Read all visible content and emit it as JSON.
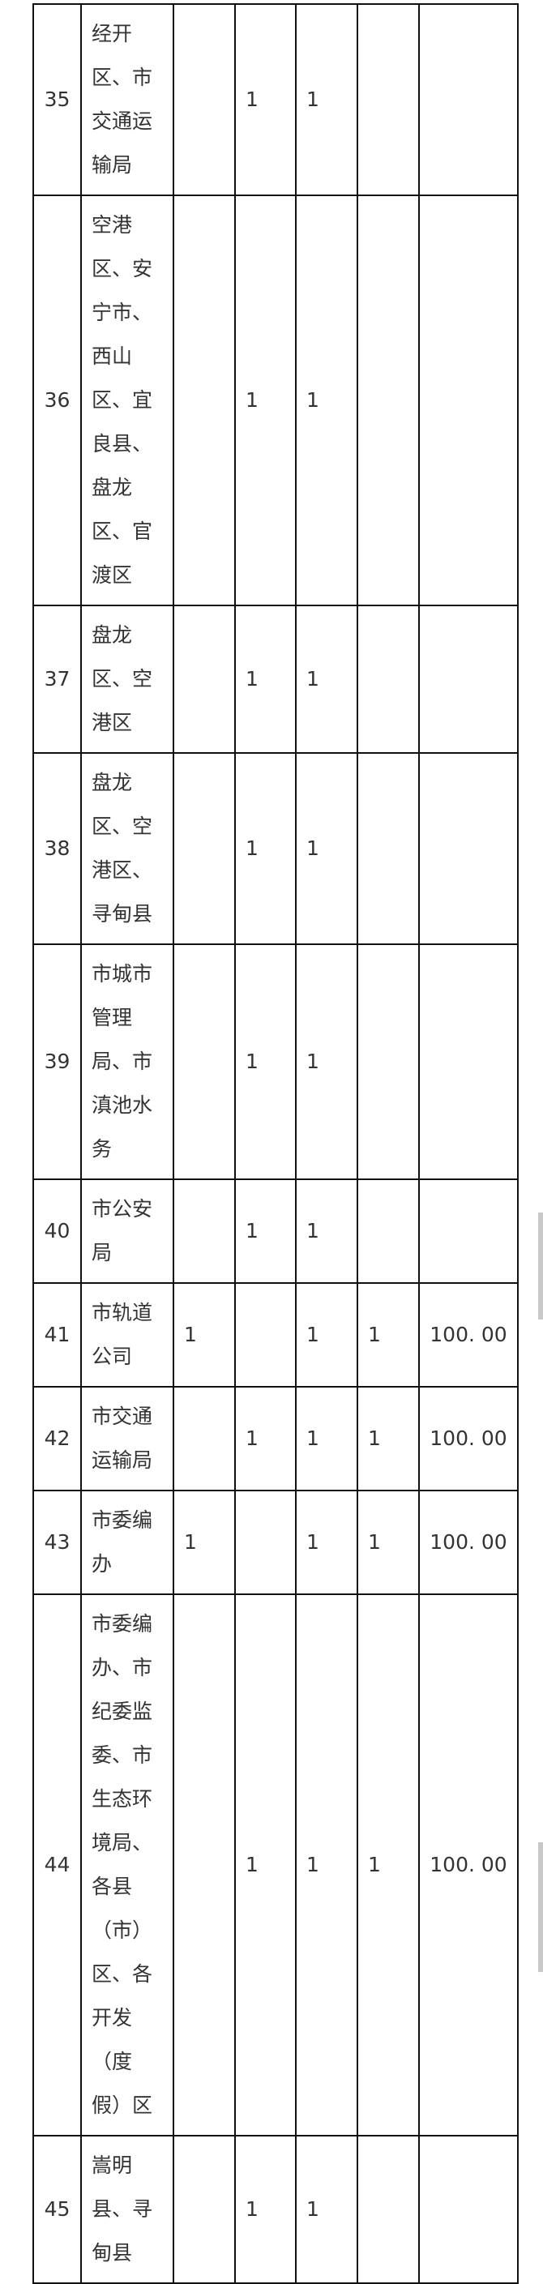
{
  "table": {
    "rows": [
      {
        "no": "35",
        "unit": [
          "经开",
          "区、市",
          "交通运",
          "输局"
        ],
        "c1": "",
        "c2": "1",
        "c3": "1",
        "c4": "",
        "amount": ""
      },
      {
        "no": "36",
        "unit": [
          "空港",
          "区、安",
          "宁市、",
          "西山",
          "区、宜",
          "良县、",
          "盘龙",
          "区、官",
          "渡区"
        ],
        "c1": "",
        "c2": "1",
        "c3": "1",
        "c4": "",
        "amount": ""
      },
      {
        "no": "37",
        "unit": [
          "盘龙",
          "区、空",
          "港区"
        ],
        "c1": "",
        "c2": "1",
        "c3": "1",
        "c4": "",
        "amount": ""
      },
      {
        "no": "38",
        "unit": [
          "盘龙",
          "区、空",
          "港区、",
          "寻甸县"
        ],
        "c1": "",
        "c2": "1",
        "c3": "1",
        "c4": "",
        "amount": ""
      },
      {
        "no": "39",
        "unit": [
          "市城市",
          "管理",
          "局、市",
          "滇池水",
          "务"
        ],
        "c1": "",
        "c2": "1",
        "c3": "1",
        "c4": "",
        "amount": ""
      },
      {
        "no": "40",
        "unit": [
          "市公安",
          "局"
        ],
        "c1": "",
        "c2": "1",
        "c3": "1",
        "c4": "",
        "amount": ""
      },
      {
        "no": "41",
        "unit": [
          "市轨道",
          "公司"
        ],
        "c1": "1",
        "c2": "",
        "c3": "1",
        "c4": "1",
        "amount": "100. 00"
      },
      {
        "no": "42",
        "unit": [
          "市交通",
          "运输局"
        ],
        "c1": "",
        "c2": "1",
        "c3": "1",
        "c4": "1",
        "amount": "100. 00"
      },
      {
        "no": "43",
        "unit": [
          "市委编",
          "办"
        ],
        "c1": "1",
        "c2": "",
        "c3": "1",
        "c4": "1",
        "amount": "100. 00"
      },
      {
        "no": "44",
        "unit": [
          "市委编",
          "办、市",
          "纪委监",
          "委、市",
          "生态环",
          "境局、",
          "各县",
          "（市）",
          "区、各",
          "开发",
          "（度",
          "假）区"
        ],
        "c1": "",
        "c2": "1",
        "c3": "1",
        "c4": "1",
        "amount": "100. 00"
      },
      {
        "no": "45",
        "unit": [
          "嵩明",
          "县、寻",
          "甸县"
        ],
        "c1": "",
        "c2": "1",
        "c3": "1",
        "c4": "",
        "amount": ""
      }
    ]
  },
  "colors": {
    "border": "#111111",
    "text": "#333333",
    "scrollbar": "#c8c8c8"
  }
}
